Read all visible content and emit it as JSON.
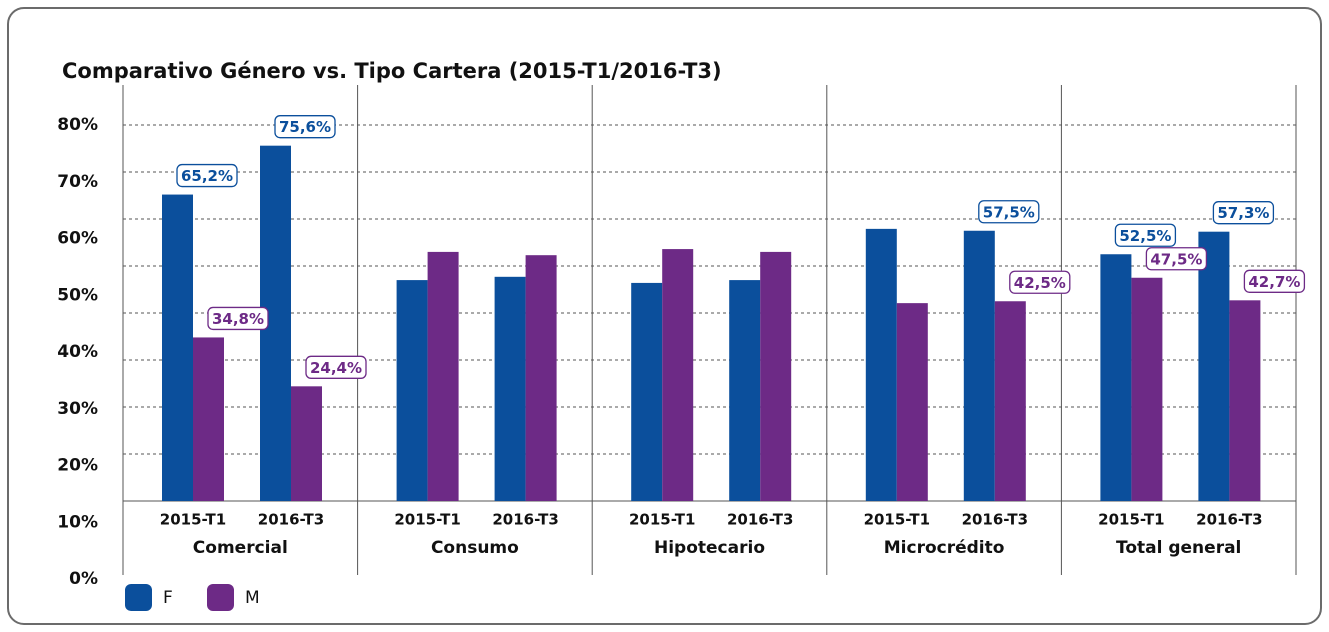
{
  "chart_data": {
    "type": "bar",
    "title": "Comparativo Género vs. Tipo Cartera (2015-T1/2016-T3)",
    "groups": [
      "Comercial",
      "Consumo",
      "Hipotecario",
      "Microcrédito",
      "Total general"
    ],
    "categories": [
      "2015-T1",
      "2016-T3",
      "2015-T1",
      "2016-T3",
      "2015-T1",
      "2016-T3",
      "2015-T1",
      "2016-T3",
      "2015-T1",
      "2016-T3"
    ],
    "series": [
      {
        "name": "F",
        "color": "#0b4f9c",
        "values": [
          65.2,
          75.6,
          47,
          47.7,
          46.4,
          47,
          57.9,
          57.5,
          52.5,
          57.3
        ],
        "value_labels": [
          "65,2%",
          "75,6%",
          null,
          null,
          null,
          null,
          null,
          "57,5%",
          "52,5%",
          "57,3%"
        ]
      },
      {
        "name": "M",
        "color": "#6d2a86",
        "values": [
          34.8,
          24.4,
          53,
          52.3,
          53.6,
          53,
          42.1,
          42.5,
          47.5,
          42.7
        ],
        "value_labels": [
          "34,8%",
          "24,4%",
          null,
          null,
          null,
          null,
          null,
          "42,5%",
          "47,5%",
          "42,7%"
        ]
      }
    ],
    "ylim": [
      0,
      80
    ],
    "yticks": [
      {
        "value": 0,
        "label": "0%"
      },
      {
        "value": 10,
        "label": "10%"
      },
      {
        "value": 20,
        "label": "20%"
      },
      {
        "value": 30,
        "label": "30%"
      },
      {
        "value": 40,
        "label": "40%"
      },
      {
        "value": 50,
        "label": "50%"
      },
      {
        "value": 60,
        "label": "60%"
      },
      {
        "value": 70,
        "label": "70%"
      },
      {
        "value": 80,
        "label": "80%"
      }
    ],
    "grid": true
  }
}
